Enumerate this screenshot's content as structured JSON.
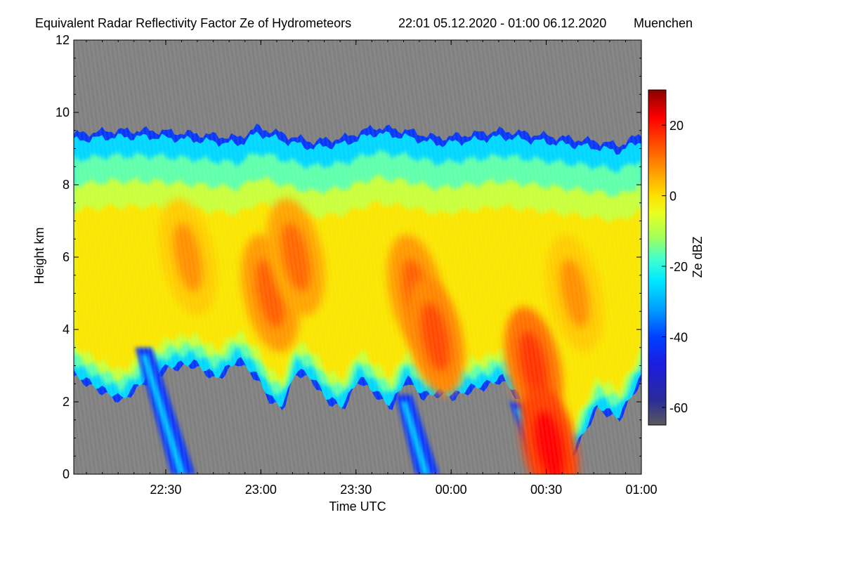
{
  "chart_data": {
    "type": "heatmap",
    "title": "Equivalent Radar Reflectivity Factor Ze of Hydrometeors",
    "time_range": "22:01 05.12.2020 - 01:00 06.12.2020",
    "location": "Muenchen",
    "xlabel": "Time UTC",
    "ylabel": "Height km",
    "x_start_min": 0,
    "x_end_min": 179,
    "x_ticks": [
      {
        "label": "22:30",
        "min": 29
      },
      {
        "label": "23:00",
        "min": 59
      },
      {
        "label": "23:30",
        "min": 89
      },
      {
        "label": "00:00",
        "min": 119
      },
      {
        "label": "00:30",
        "min": 149
      },
      {
        "label": "01:00",
        "min": 179
      }
    ],
    "ylim": [
      0,
      12
    ],
    "y_ticks": [
      0,
      2,
      4,
      6,
      8,
      10,
      12
    ],
    "colorbar": {
      "label": "Ze dBZ",
      "range": [
        -65,
        30
      ],
      "ticks": [
        -60,
        -40,
        -20,
        0,
        20
      ],
      "stops": [
        {
          "value": -65,
          "color": "#5a5a5a"
        },
        {
          "value": -58,
          "color": "#2b2b99"
        },
        {
          "value": -48,
          "color": "#1c1ce0"
        },
        {
          "value": -40,
          "color": "#0040ff"
        },
        {
          "value": -32,
          "color": "#00a0ff"
        },
        {
          "value": -24,
          "color": "#00e8ff"
        },
        {
          "value": -18,
          "color": "#40ffd0"
        },
        {
          "value": -12,
          "color": "#a0ff60"
        },
        {
          "value": -5,
          "color": "#e8ff20"
        },
        {
          "value": 0,
          "color": "#ffe000"
        },
        {
          "value": 8,
          "color": "#ff9000"
        },
        {
          "value": 16,
          "color": "#ff4000"
        },
        {
          "value": 22,
          "color": "#ff0000"
        },
        {
          "value": 30,
          "color": "#8c0000"
        }
      ]
    },
    "background_color": "#808080",
    "echo_top_profile": {
      "time_min": [
        0,
        12,
        25,
        40,
        52,
        58,
        66,
        75,
        85,
        95,
        105,
        115,
        125,
        135,
        145,
        155,
        165,
        172,
        179
      ],
      "top_km": [
        9.4,
        9.5,
        9.5,
        9.4,
        9.3,
        9.6,
        9.4,
        9.2,
        9.3,
        9.6,
        9.5,
        9.3,
        9.4,
        9.5,
        9.4,
        9.3,
        9.2,
        9.1,
        9.4
      ]
    },
    "echo_base_profile": {
      "time_min": [
        0,
        8,
        15,
        22,
        30,
        38,
        45,
        52,
        58,
        62,
        66,
        70,
        75,
        80,
        85,
        90,
        95,
        100,
        105,
        110,
        115,
        120,
        125,
        130,
        135,
        140,
        144,
        148,
        152,
        158,
        165,
        172,
        179
      ],
      "base_km": [
        2.7,
        2.3,
        2.0,
        2.5,
        2.9,
        3.0,
        2.6,
        3.1,
        2.6,
        2.0,
        1.8,
        2.8,
        2.6,
        2.0,
        1.8,
        2.6,
        2.2,
        1.8,
        2.6,
        2.1,
        2.2,
        2.1,
        2.3,
        2.4,
        2.6,
        2.1,
        1.6,
        0.0,
        0.0,
        0.6,
        1.8,
        1.5,
        2.6
      ]
    },
    "core_features": [
      {
        "time_min": 36,
        "height_km": 6.0,
        "dbz": 8
      },
      {
        "time_min": 62,
        "height_km": 5.0,
        "dbz": 13
      },
      {
        "time_min": 70,
        "height_km": 6.0,
        "dbz": 12
      },
      {
        "time_min": 108,
        "height_km": 5.0,
        "dbz": 13
      },
      {
        "time_min": 114,
        "height_km": 3.8,
        "dbz": 15
      },
      {
        "time_min": 145,
        "height_km": 3.0,
        "dbz": 17
      },
      {
        "time_min": 150,
        "height_km": 0.8,
        "dbz": 22
      },
      {
        "time_min": 158,
        "height_km": 5.0,
        "dbz": 8
      }
    ],
    "fall_streaks": [
      {
        "time_min_top": 22,
        "height_km_top": 3.5,
        "time_min_bottom": 33,
        "height_km_bottom": 0.0
      },
      {
        "time_min_top": 104,
        "height_km_top": 2.2,
        "time_min_bottom": 110,
        "height_km_bottom": 0.0
      },
      {
        "time_min_top": 140,
        "height_km_top": 2.0,
        "time_min_bottom": 148,
        "height_km_bottom": 0.0
      }
    ]
  }
}
